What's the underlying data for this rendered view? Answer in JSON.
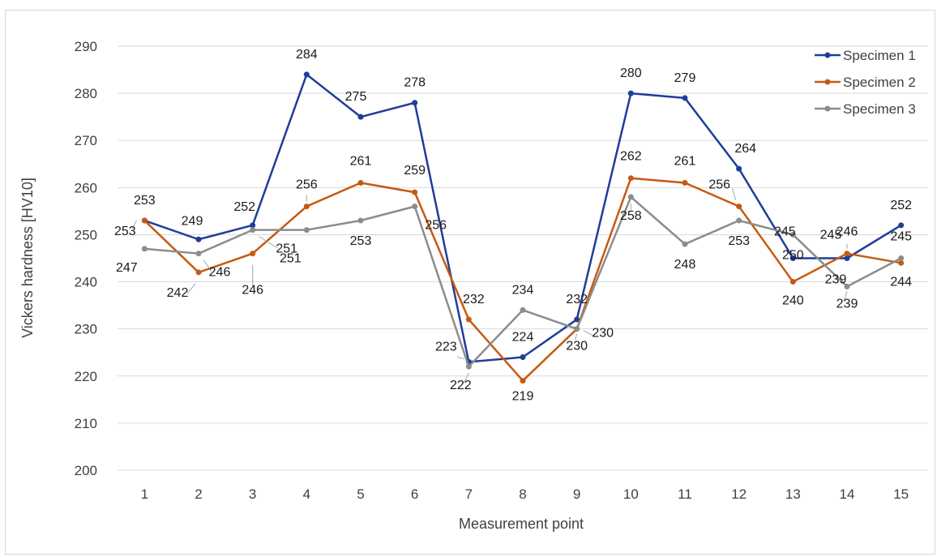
{
  "chart_data": {
    "type": "line",
    "title": "",
    "xlabel": "Measurement point",
    "ylabel": "Vickers hardness [HV10]",
    "categories": [
      "1",
      "2",
      "3",
      "4",
      "5",
      "6",
      "7",
      "8",
      "9",
      "10",
      "11",
      "12",
      "13",
      "14",
      "15"
    ],
    "ylim": [
      200,
      290
    ],
    "yticks": [
      "200",
      "210",
      "220",
      "230",
      "240",
      "250",
      "260",
      "270",
      "280",
      "290"
    ],
    "grid": true,
    "legend_position": "top-right",
    "series": [
      {
        "name": "Specimen 1",
        "color": "#1f3d99",
        "values": [
          253,
          249,
          252,
          284,
          275,
          278,
          223,
          224,
          232,
          280,
          279,
          264,
          245,
          245,
          252
        ]
      },
      {
        "name": "Specimen 2",
        "color": "#c55a11",
        "values": [
          253,
          242,
          246,
          256,
          261,
          259,
          232,
          219,
          230,
          262,
          261,
          256,
          240,
          246,
          244
        ]
      },
      {
        "name": "Specimen 3",
        "color": "#8c8c8c",
        "values": [
          247,
          246,
          251,
          251,
          253,
          256,
          222,
          234,
          230,
          258,
          248,
          253,
          250,
          239,
          245
        ]
      }
    ]
  }
}
